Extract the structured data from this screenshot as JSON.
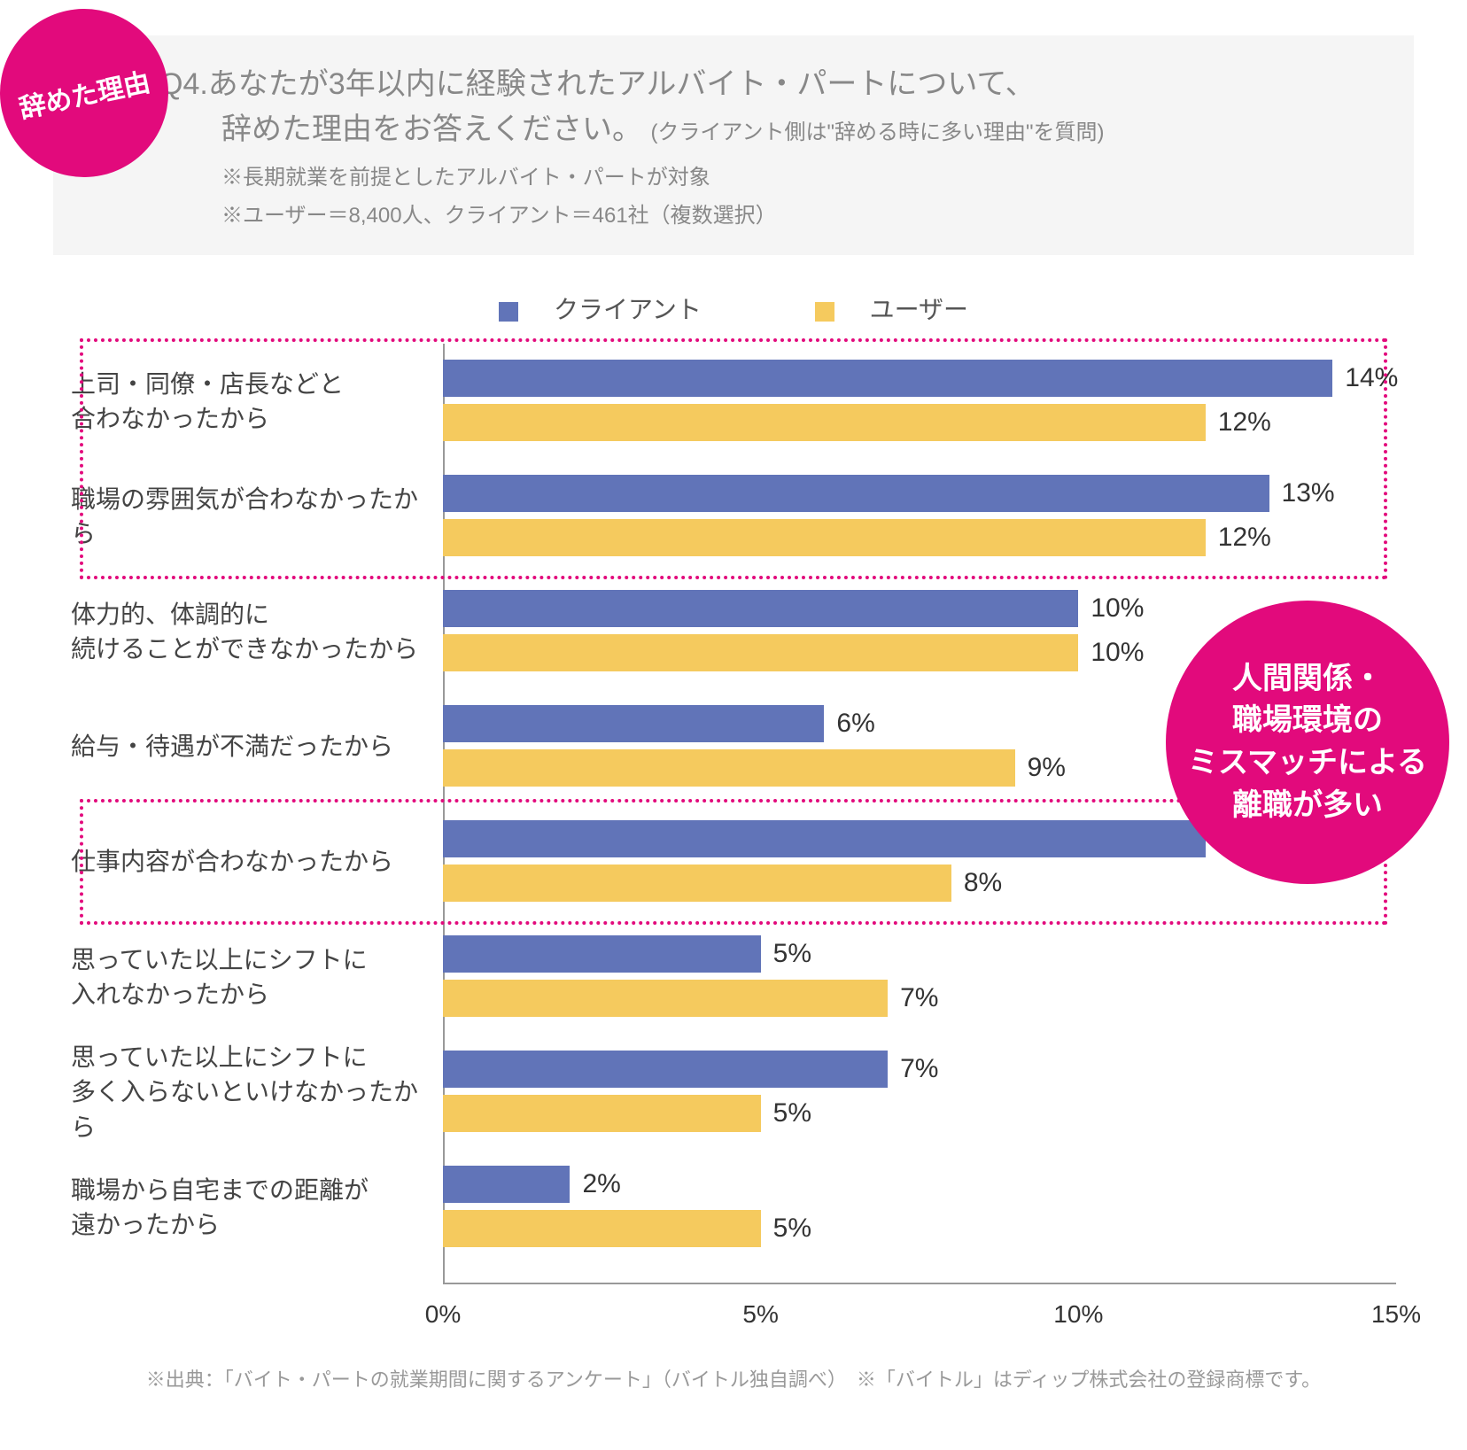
{
  "colors": {
    "magenta": "#e20a7c",
    "client": "#6174b8",
    "user": "#f5ca5e",
    "header_bg": "#f5f5f5",
    "text_main": "#333333",
    "text_muted": "#888888"
  },
  "badge_left": "辞めた理由",
  "question": {
    "line1": "Q4.あなたが3年以内に経験されたアルバイト・パートについて、",
    "line2": "辞めた理由をお答えください。",
    "sub": "(クライアント側は\"辞める時に多い理由\"を質問)",
    "note1": "※長期就業を前提としたアルバイト・パートが対象",
    "note2": "※ユーザー＝8,400人、クライアント＝461社（複数選択）"
  },
  "legend": {
    "client": "クライアント",
    "user": "ユーザー"
  },
  "chart": {
    "type": "bar",
    "orientation": "horizontal",
    "x_max": 15,
    "xtick_step": 5,
    "xticks": [
      "0%",
      "5%",
      "10%",
      "15%"
    ],
    "bar_colors": {
      "client": "#6174b8",
      "user": "#f5ca5e"
    },
    "label_fontsize": 28,
    "value_fontsize": 30,
    "categories": [
      {
        "label": "上司・同僚・店長などと\n合わなかったから",
        "client": 14,
        "user": 12
      },
      {
        "label": "職場の雰囲気が合わなかったから",
        "client": 13,
        "user": 12
      },
      {
        "label": "体力的、体調的に\n続けることができなかったから",
        "client": 10,
        "user": 10
      },
      {
        "label": "給与・待遇が不満だったから",
        "client": 6,
        "user": 9
      },
      {
        "label": "仕事内容が合わなかったから",
        "client": 12,
        "user": 8
      },
      {
        "label": "思っていた以上にシフトに\n入れなかったから",
        "client": 5,
        "user": 7
      },
      {
        "label": "思っていた以上にシフトに\n多く入らないといけなかったから",
        "client": 7,
        "user": 5
      },
      {
        "label": "職場から自宅までの距離が\n遠かったから",
        "client": 2,
        "user": 5
      }
    ],
    "highlights": [
      {
        "from_row": 0,
        "to_row": 1
      },
      {
        "from_row": 4,
        "to_row": 4
      }
    ]
  },
  "callout": "人間関係・\n職場環境の\nミスマッチによる\n離職が多い",
  "footnote": "※出典：「バイト・パートの就業期間に関するアンケート」（バイトル独自調べ）　※「バイトル」はディップ株式会社の登録商標です。"
}
